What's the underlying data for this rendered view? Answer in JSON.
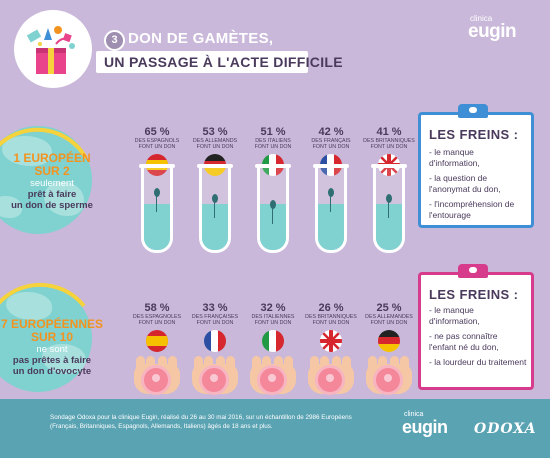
{
  "header": {
    "number": "3",
    "title_line1": "DON DE GAMÈTES,",
    "title_line2": "UN PASSAGE À L'ACTE DIFFICILE",
    "brand_small": "clinica",
    "brand_big": "eugin",
    "icon": "gift-box-icon"
  },
  "sperm_section": {
    "globe": {
      "headline1": "1 EUROPÉEN",
      "headline2": "SUR 2",
      "line3": "seulement",
      "line4": "prêt à faire",
      "line5": "un don de sperme"
    },
    "stats": [
      {
        "pct": "65 %",
        "nation": "DES ESPAGNOLS",
        "verb": "FONT UN DON",
        "flag_icon": "spain-flag-icon"
      },
      {
        "pct": "53 %",
        "nation": "DES ALLEMANDS",
        "verb": "FONT UN DON",
        "flag_icon": "germany-flag-icon"
      },
      {
        "pct": "51 %",
        "nation": "DES ITALIENS",
        "verb": "FONT UN DON",
        "flag_icon": "italy-flag-icon"
      },
      {
        "pct": "42 %",
        "nation": "DES FRANÇAIS",
        "verb": "FONT UN DON",
        "flag_icon": "france-flag-icon"
      },
      {
        "pct": "41 %",
        "nation": "DES BRITANNIQUES",
        "verb": "FONT UN DON",
        "flag_icon": "uk-flag-icon"
      }
    ],
    "brakes": {
      "title": "LES FREINS :",
      "items": [
        "le manque d'information,",
        "la question de l'anonymat du don,",
        "l'incompréhension de l'entourage"
      ],
      "accent": "#3f8fd6"
    }
  },
  "egg_section": {
    "globe": {
      "headline1": "7 EUROPÉENNES",
      "headline2": "SUR 10",
      "line3": "ne sont",
      "line4": "pas prêtes à faire",
      "line5": "un don d'ovocyte"
    },
    "stats": [
      {
        "pct": "58 %",
        "nation": "DES ESPAGNOLES",
        "verb": "FONT UN DON",
        "flag_icon": "spain-flag-icon"
      },
      {
        "pct": "33 %",
        "nation": "DES FRANÇAISES",
        "verb": "FONT UN DON",
        "flag_icon": "france-flag-icon"
      },
      {
        "pct": "32 %",
        "nation": "DES ITALIENNES",
        "verb": "FONT UN DON",
        "flag_icon": "italy-flag-icon"
      },
      {
        "pct": "26 %",
        "nation": "DES BRITANNIQUES",
        "verb": "FONT UN DON",
        "flag_icon": "uk-flag-icon"
      },
      {
        "pct": "25 %",
        "nation": "DES ALLEMANDES",
        "verb": "FONT UN DON",
        "flag_icon": "germany-flag-icon"
      }
    ],
    "brakes": {
      "title": "LES FREINS :",
      "items": [
        "le manque d'information,",
        "ne pas connaître l'enfant né du don,",
        "la lourdeur du traitement"
      ],
      "accent": "#d63c8b"
    }
  },
  "footer": {
    "note": "Sondage Odoxa pour la clinique Eugin, réalisé du 26 au 30 mai 2016, sur un échantillon de 2986 Européens (Français, Britanniques, Espagnols, Allemands, Italiens) âgés de 18 ans et plus.",
    "brand_small": "clinica",
    "brand_big": "eugin",
    "partner": "ODOXA"
  },
  "colors": {
    "background": "#c9b8d9",
    "orange": "#f3931f",
    "teal": "#7fd2d0",
    "footer": "#5aa3b3",
    "dark_text": "#4a3a5c"
  }
}
